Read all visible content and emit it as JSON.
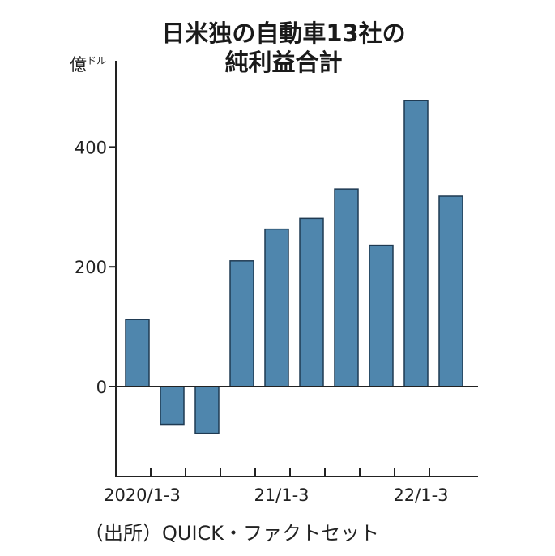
{
  "chart_data": {
    "type": "bar",
    "title_lines": [
      "日米独の自動車13社の",
      "純利益合計"
    ],
    "unit": {
      "main": "億",
      "sup": "ドル"
    },
    "source": "（出所）QUICK・ファクトセット",
    "categories": [
      "2020/1-3",
      "",
      "",
      "",
      "21/1-3",
      "",
      "",
      "",
      "22/1-3",
      ""
    ],
    "values": [
      112,
      -63,
      -78,
      210,
      263,
      281,
      330,
      236,
      478,
      318
    ],
    "yticks": [
      0,
      200,
      400
    ],
    "ylim": [
      -150,
      540
    ],
    "xlabel": "",
    "ylabel": "",
    "grid": false,
    "colors": {
      "bar": "#4f86ad",
      "bar_stroke": "#1f3a52",
      "axis": "#222222"
    }
  }
}
